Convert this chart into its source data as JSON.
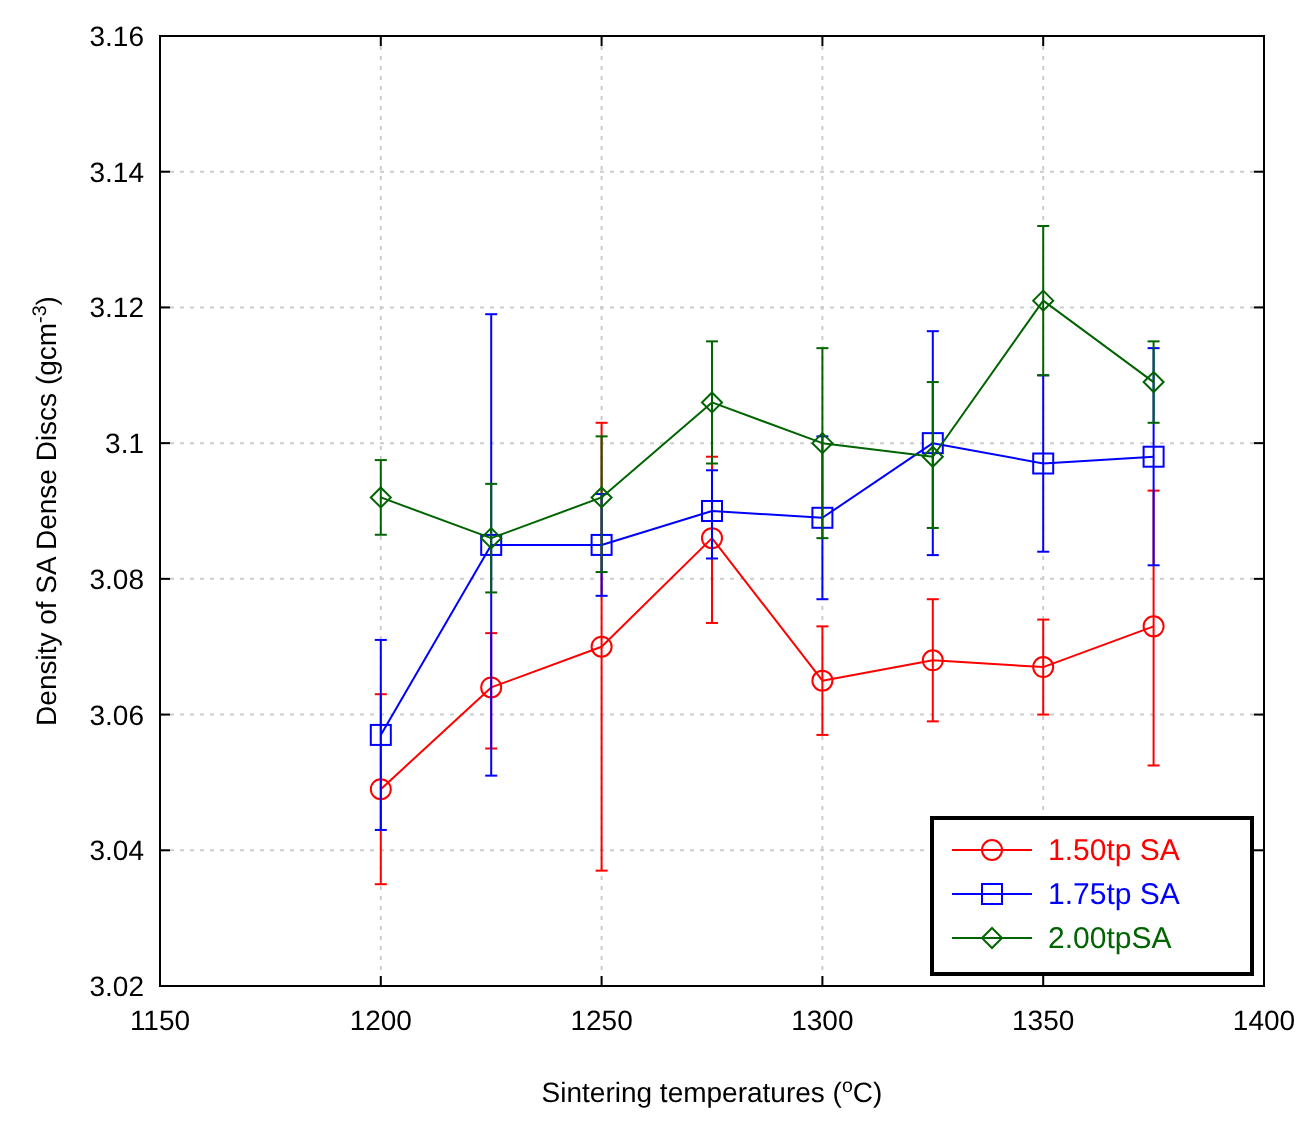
{
  "chart_data": {
    "type": "line",
    "xlabel": "Sintering temperatures ($^{o}$C)",
    "ylabel": "Density of SA Dense Discs (gcm$^{-3}$)",
    "x": [
      1200,
      1225,
      1250,
      1275,
      1300,
      1325,
      1350,
      1375
    ],
    "series": [
      {
        "name": "1.50tp SA",
        "color": "#ff0000",
        "marker": "circle",
        "values": [
          3.049,
          3.064,
          3.07,
          3.086,
          3.065,
          3.068,
          3.067,
          3.073
        ],
        "errors": [
          [
            3.035,
            3.063
          ],
          [
            3.055,
            3.072
          ],
          [
            3.037,
            3.103
          ],
          [
            3.0735,
            3.098
          ],
          [
            3.057,
            3.073
          ],
          [
            3.059,
            3.077
          ],
          [
            3.06,
            3.074
          ],
          [
            3.0525,
            3.093
          ]
        ]
      },
      {
        "name": "1.75tp SA",
        "color": "#0000ff",
        "marker": "square",
        "values": [
          3.057,
          3.085,
          3.085,
          3.09,
          3.089,
          3.1,
          3.097,
          3.098
        ],
        "errors": [
          [
            3.043,
            3.071
          ],
          [
            3.051,
            3.119
          ],
          [
            3.0775,
            3.0925
          ],
          [
            3.083,
            3.096
          ],
          [
            3.077,
            3.101
          ],
          [
            3.0835,
            3.1165
          ],
          [
            3.084,
            3.11
          ],
          [
            3.082,
            3.114
          ]
        ]
      },
      {
        "name": "2.00tpSA",
        "color": "#006400",
        "marker": "diamond",
        "values": [
          3.092,
          3.086,
          3.092,
          3.106,
          3.1,
          3.098,
          3.121,
          3.109
        ],
        "errors": [
          [
            3.0865,
            3.0975
          ],
          [
            3.078,
            3.094
          ],
          [
            3.081,
            3.101
          ],
          [
            3.097,
            3.115
          ],
          [
            3.086,
            3.114
          ],
          [
            3.0875,
            3.109
          ],
          [
            3.11,
            3.132
          ],
          [
            3.103,
            3.115
          ]
        ]
      }
    ],
    "xlim": [
      1150,
      1400
    ],
    "xticks": [
      1150,
      1200,
      1250,
      1300,
      1350,
      1400
    ],
    "ylim": [
      3.02,
      3.16
    ],
    "yticks": [
      3.02,
      3.04,
      3.06,
      3.08,
      3.1,
      3.12,
      3.14,
      3.16
    ],
    "grid": true,
    "legend": "bottom right"
  }
}
